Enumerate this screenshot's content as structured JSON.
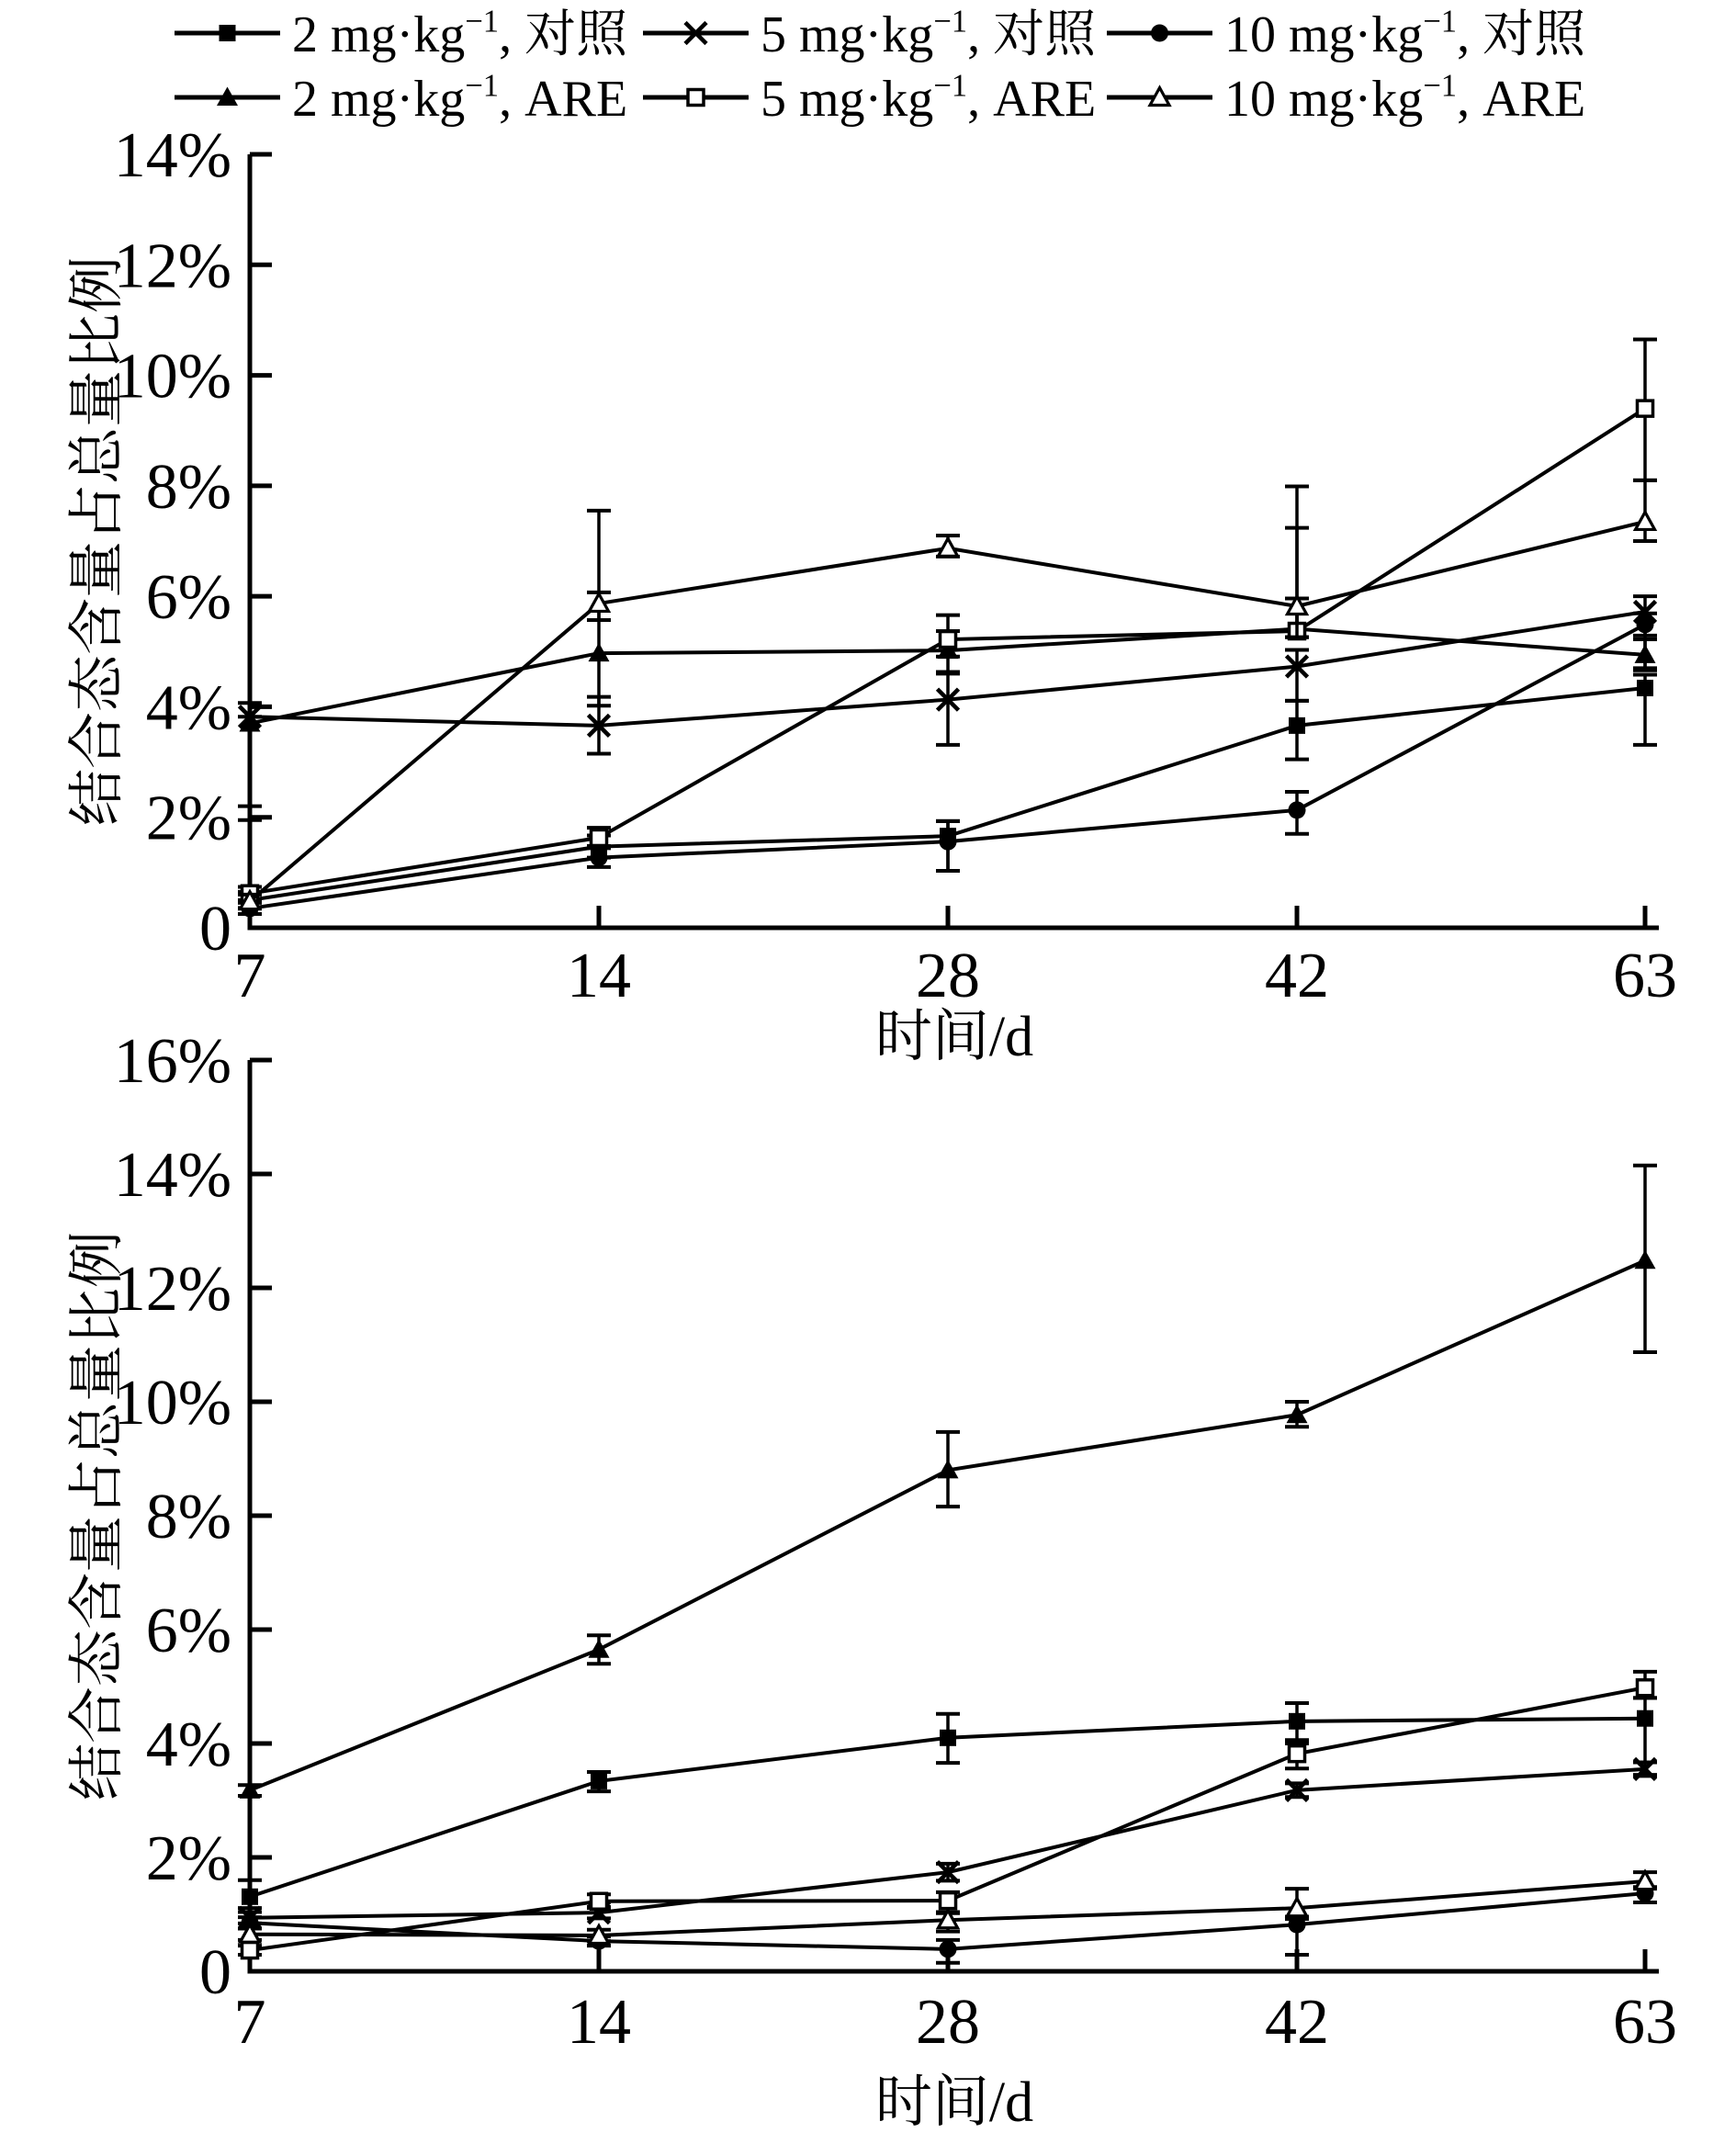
{
  "figure": {
    "type": "scientific line charts, two stacked panels, black and white",
    "background_color": "#ffffff",
    "ink_color": "#000000"
  },
  "legend": {
    "entries": [
      {
        "marker": "filled-square-icon",
        "base": "2 mg·kg",
        "sup": "−1",
        "rest": ", 对照"
      },
      {
        "marker": "x-cross-icon",
        "base": "5 mg·kg",
        "sup": "−1",
        "rest": ", 对照"
      },
      {
        "marker": "filled-circle-icon",
        "base": "10 mg·kg",
        "sup": "−1",
        "rest": ", 对照"
      },
      {
        "marker": "filled-triangle-icon",
        "base": "2 mg·kg",
        "sup": "−1",
        "rest": ", ARE"
      },
      {
        "marker": "open-square-icon",
        "base": "5 mg·kg",
        "sup": "−1",
        "rest": ", ARE"
      },
      {
        "marker": "open-triangle-icon",
        "base": "10 mg·kg",
        "sup": "−1",
        "rest": ", ARE"
      }
    ]
  },
  "chart_data": [
    {
      "type": "line",
      "panel": "top",
      "x": [
        7,
        14,
        28,
        42,
        63
      ],
      "x_tick_labels": [
        "7",
        "14",
        "28",
        "42",
        "63"
      ],
      "xlabel": "时间/d",
      "ylabel": "结合态含量占总量比例",
      "ylim": [
        0,
        14
      ],
      "ytick_step": 2,
      "ytick_labels": [
        "0",
        "2%",
        "4%",
        "6%",
        "8%",
        "10%",
        "12%",
        "14%"
      ],
      "y_unit": "percent",
      "grid": false,
      "legend_position": "above-figure",
      "error_bars": true,
      "series": [
        {
          "name": "10 mg·kg−1, 对照",
          "marker": "filled-circle",
          "values": [
            0.35,
            1.27,
            1.56,
            2.13,
            5.49
          ],
          "err_minus": [
            0.1,
            0.17,
            0.53,
            0.43,
            0.2
          ],
          "err_plus": [
            0.1,
            0.17,
            0.37,
            0.33,
            0.2
          ]
        },
        {
          "name": "2 mg·kg−1, 对照",
          "marker": "filled-square",
          "values": [
            0.5,
            1.47,
            1.66,
            3.66,
            4.34
          ],
          "err_minus": [
            0.15,
            0.2,
            0.63,
            0.61,
            1.03
          ],
          "err_plus": [
            0.15,
            0.2,
            0.27,
            0.45,
            0.24
          ]
        },
        {
          "name": "5 mg·kg−1, 对照",
          "marker": "x-cross",
          "values": [
            3.82,
            3.66,
            4.13,
            4.73,
            5.72
          ],
          "err_minus": [
            1.62,
            0.51,
            0.82,
            0.62,
            1.02
          ],
          "err_plus": [
            0.25,
            0.52,
            0.47,
            0.3,
            0.28
          ]
        },
        {
          "name": "2 mg·kg−1, ARE",
          "marker": "filled-triangle",
          "values": [
            3.7,
            4.97,
            5.02,
            5.41,
            4.94
          ],
          "err_minus": [
            1.75,
            0.95,
            0.39,
            0.15,
            0.28
          ],
          "err_plus": [
            0.12,
            1.1,
            0.35,
            2.58,
            0.28
          ]
        },
        {
          "name": "5 mg·kg−1, ARE",
          "marker": "open-square",
          "values": [
            0.62,
            1.63,
            5.22,
            5.37,
            9.4
          ],
          "err_minus": [
            0.12,
            0.15,
            0.31,
            0.11,
            1.3
          ],
          "err_plus": [
            0.12,
            0.18,
            0.44,
            1.87,
            1.25
          ]
        },
        {
          "name": "10 mg·kg−1, ARE",
          "marker": "open-triangle",
          "values": [
            0.48,
            5.87,
            6.87,
            5.82,
            7.35
          ],
          "err_minus": [
            0.12,
            0.3,
            0.15,
            0.56,
            0.35
          ],
          "err_plus": [
            0.12,
            1.68,
            0.23,
            0.14,
            0.75
          ]
        }
      ]
    },
    {
      "type": "line",
      "panel": "bottom",
      "x": [
        7,
        14,
        28,
        42,
        63
      ],
      "x_tick_labels": [
        "7",
        "14",
        "28",
        "42",
        "63"
      ],
      "xlabel": "时间/d",
      "ylabel": "结合态含量占总量比例",
      "ylim": [
        0,
        16
      ],
      "ytick_step": 2,
      "ytick_labels": [
        "0",
        "2%",
        "4%",
        "6%",
        "8%",
        "10%",
        "12%",
        "14%",
        "16%"
      ],
      "y_unit": "percent",
      "grid": false,
      "error_bars": true,
      "series": [
        {
          "name": "10 mg·kg−1, 对照",
          "marker": "filled-circle",
          "values": [
            0.85,
            0.53,
            0.39,
            0.82,
            1.37
          ],
          "err_minus": [
            0.1,
            0.08,
            0.24,
            0.53,
            0.16
          ],
          "err_plus": [
            0.1,
            0.08,
            0.16,
            0.1,
            0.1
          ]
        },
        {
          "name": "2 mg·kg−1, 对照",
          "marker": "filled-square",
          "values": [
            1.31,
            3.34,
            4.1,
            4.39,
            4.44
          ],
          "err_minus": [
            0.2,
            0.18,
            0.44,
            0.39,
            0.99
          ],
          "err_plus": [
            0.29,
            0.16,
            0.42,
            0.32,
            0.36
          ]
        },
        {
          "name": "5 mg·kg−1, 对照",
          "marker": "x-cross",
          "values": [
            0.94,
            1.03,
            1.74,
            3.18,
            3.55
          ],
          "err_minus": [
            0.1,
            0.1,
            0.15,
            0.12,
            0.12
          ],
          "err_plus": [
            0.1,
            0.1,
            0.15,
            0.12,
            0.12
          ]
        },
        {
          "name": "2 mg·kg−1, ARE",
          "marker": "filled-triangle",
          "values": [
            3.18,
            5.65,
            8.8,
            9.77,
            12.48
          ],
          "err_minus": [
            0.1,
            0.25,
            0.64,
            0.21,
            1.61
          ],
          "err_plus": [
            0.09,
            0.25,
            0.67,
            0.23,
            1.67
          ]
        },
        {
          "name": "5 mg·kg−1, ARE",
          "marker": "open-square",
          "values": [
            0.37,
            1.23,
            1.24,
            3.82,
            4.98
          ],
          "err_minus": [
            0.08,
            0.12,
            0.2,
            0.26,
            0.18
          ],
          "err_plus": [
            0.08,
            0.12,
            0.15,
            0.24,
            0.28
          ]
        },
        {
          "name": "10 mg·kg−1, ARE",
          "marker": "open-triangle",
          "values": [
            0.65,
            0.63,
            0.9,
            1.11,
            1.58
          ],
          "err_minus": [
            0.1,
            0.1,
            0.2,
            0.15,
            0.1
          ],
          "err_plus": [
            0.1,
            0.1,
            0.12,
            0.34,
            0.16
          ]
        }
      ]
    }
  ]
}
